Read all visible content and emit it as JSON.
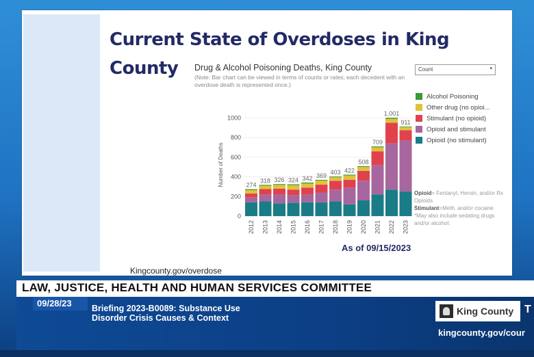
{
  "slide": {
    "title_line1": "Current State of Overdoses in King",
    "title_line2": "County",
    "chart_title": "Drug & Alcohol Poisoning Deaths, King County",
    "chart_note": "(Note: Bar chart can be viewed in terms of counts or rates; each decedent with an overdose death is represented once.)",
    "dropdown_value": "Count",
    "dropdown_arrow": "▾",
    "legend": [
      {
        "label": "Alcohol Poisoning",
        "color": "#3a9a3a"
      },
      {
        "label": "Other drug (no opioi...",
        "color": "#e2c13a"
      },
      {
        "label": "Stimulant (no opioid)",
        "color": "#e0424d"
      },
      {
        "label": "Opioid and stimulant",
        "color": "#a8669e"
      },
      {
        "label": "Opioid (no stimulant)",
        "color": "#1a7c86"
      }
    ],
    "notes": {
      "opioid_label": "Opioid",
      "opioid_text": "= Fentanyl, Heroin, and/or Rx Opioids",
      "stimulant_label": "Stimulant",
      "stimulant_text": "=Meth. and/or cocaine",
      "may_include": "*May also include sedating drugs and/or alcohol."
    },
    "as_of": "As of 09/15/2023",
    "footer_url": "Kingcounty.gov/overdose"
  },
  "chart_data": {
    "type": "bar",
    "stacked": true,
    "categories": [
      "2012",
      "2013",
      "2014",
      "2015",
      "2016",
      "2017",
      "2018",
      "2019",
      "2020",
      "2021",
      "2022",
      "2023"
    ],
    "totals": [
      274,
      318,
      326,
      324,
      342,
      369,
      403,
      422,
      508,
      709,
      1001,
      911
    ],
    "total_labels": [
      "274",
      "318",
      "326",
      "324",
      "342",
      "369",
      "403",
      "422",
      "508",
      "709",
      "1,001",
      "911"
    ],
    "ylabel": "Number of Deaths",
    "ylim": [
      0,
      1100
    ],
    "yticks": [
      0,
      200,
      400,
      600,
      800,
      1000
    ],
    "series": [
      {
        "name": "Opioid (no stimulant)",
        "values": [
          140,
          150,
          130,
          135,
          140,
          140,
          150,
          120,
          160,
          220,
          270,
          250
        ]
      },
      {
        "name": "Opioid and stimulant",
        "values": [
          50,
          70,
          90,
          80,
          80,
          100,
          120,
          170,
          200,
          300,
          470,
          520
        ]
      },
      {
        "name": "Stimulant (no opioid)",
        "values": [
          40,
          55,
          60,
          55,
          70,
          80,
          90,
          80,
          100,
          140,
          210,
          105
        ]
      },
      {
        "name": "Other drug (no opioi...",
        "values": [
          35,
          35,
          38,
          45,
          42,
          42,
          35,
          44,
          40,
          40,
          40,
          30
        ]
      },
      {
        "name": "Alcohol Poisoning",
        "values": [
          9,
          8,
          8,
          9,
          10,
          7,
          8,
          8,
          8,
          9,
          11,
          6
        ]
      }
    ]
  },
  "broadcast": {
    "band_text": "LAW, JUSTICE, HEALTH AND HUMAN SERVICES COMMITTEE",
    "date": "09/28/23",
    "briefing_line1": "Briefing 2023-B0089: Substance Use",
    "briefing_line2": "Disorder Crisis Causes & Context",
    "logo_text": "King County",
    "logo_extra": "T",
    "url": "kingcounty.gov/cour"
  }
}
